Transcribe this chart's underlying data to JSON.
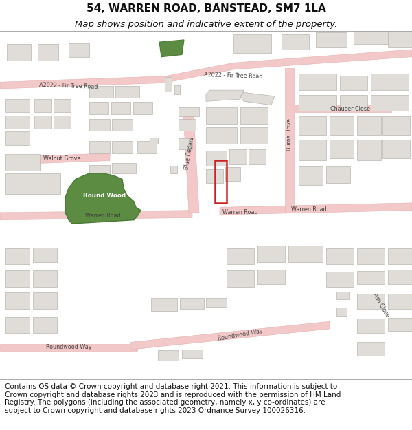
{
  "title_line1": "54, WARREN ROAD, BANSTEAD, SM7 1LA",
  "title_line2": "Map shows position and indicative extent of the property.",
  "copyright_text": "Contains OS data © Crown copyright and database right 2021. This information is subject to Crown copyright and database rights 2023 and is reproduced with the permission of HM Land Registry. The polygons (including the associated geometry, namely x, y co-ordinates) are subject to Crown copyright and database rights 2023 Ordnance Survey 100026316.",
  "map_bg": "#f7f5f2",
  "road_fill": "#f2c8c8",
  "road_edge": "#e8b0b0",
  "building_fill": "#e0ddd8",
  "building_edge": "#b8b5b0",
  "green_fill": "#5c8c42",
  "green_edge": "#4a7a32",
  "plot_edge": "#cc2020",
  "plot_lw": 1.8,
  "label_color": "#404040",
  "label_fs": 5.8,
  "road_lw": 0.4,
  "bld_lw": 0.5,
  "title_fs": 11,
  "sub_fs": 9.5,
  "copy_fs": 7.5,
  "title_color": "#111111",
  "copy_color": "#111111"
}
